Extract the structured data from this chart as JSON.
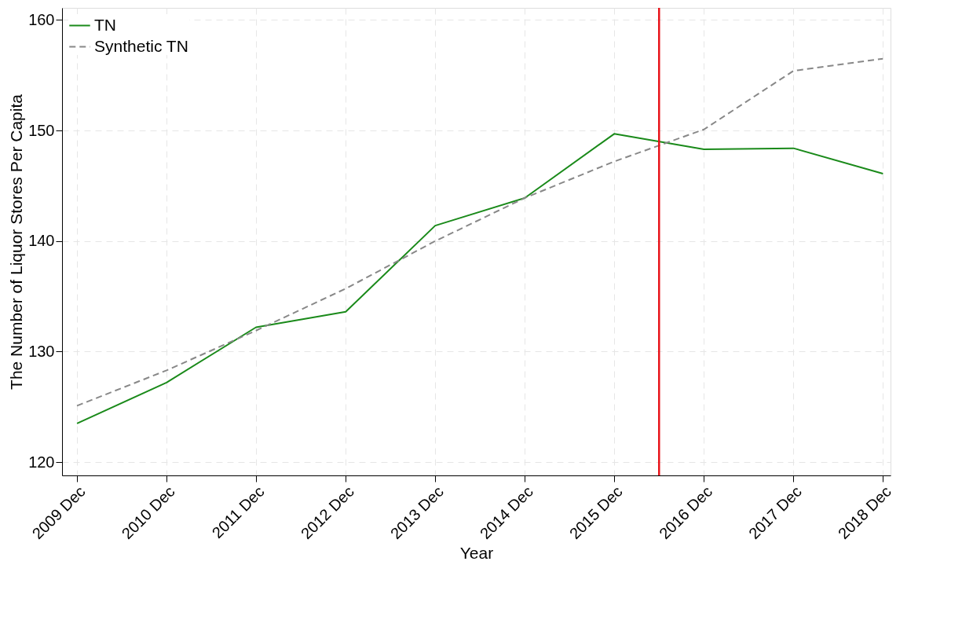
{
  "chart_data": {
    "type": "line",
    "xlabel": "Year",
    "ylabel": "The Number of Liquor Stores Per Capita",
    "x": [
      "2009-12",
      "2010-12",
      "2011-12",
      "2012-12",
      "2013-12",
      "2014-12",
      "2015-12",
      "2016-12",
      "2017-12",
      "2018-12"
    ],
    "series": [
      {
        "name": "TN",
        "color": "#1a8a1a",
        "line_style": "solid",
        "values": [
          123.5,
          127.2,
          132.2,
          133.6,
          141.4,
          143.9,
          149.7,
          148.3,
          148.4,
          146.1
        ]
      },
      {
        "name": "Synthetic TN",
        "color": "#888888",
        "line_style": "dashed",
        "values": [
          125.1,
          128.3,
          131.9,
          135.7,
          140.0,
          143.9,
          147.2,
          150.1,
          155.4,
          156.5
        ]
      }
    ],
    "xlim": [
      "2009-10",
      "2019-01"
    ],
    "xticks": [
      {
        "value": "2009-12",
        "label": "2009 Dec"
      },
      {
        "value": "2010-12",
        "label": "2010 Dec"
      },
      {
        "value": "2011-12",
        "label": "2011 Dec"
      },
      {
        "value": "2012-12",
        "label": "2012 Dec"
      },
      {
        "value": "2013-12",
        "label": "2013 Dec"
      },
      {
        "value": "2014-12",
        "label": "2014 Dec"
      },
      {
        "value": "2015-12",
        "label": "2015 Dec"
      },
      {
        "value": "2016-12",
        "label": "2016 Dec"
      },
      {
        "value": "2017-12",
        "label": "2017 Dec"
      },
      {
        "value": "2018-12",
        "label": "2018 Dec"
      }
    ],
    "ylim": [
      118.8,
      161.1
    ],
    "yticks": [
      120,
      130,
      140,
      150,
      160
    ],
    "ref_lines": [
      {
        "axis": "x",
        "value": "2016-06",
        "color": "#e8141b"
      }
    ],
    "grid": true,
    "legend": "top left",
    "marker": "none"
  }
}
